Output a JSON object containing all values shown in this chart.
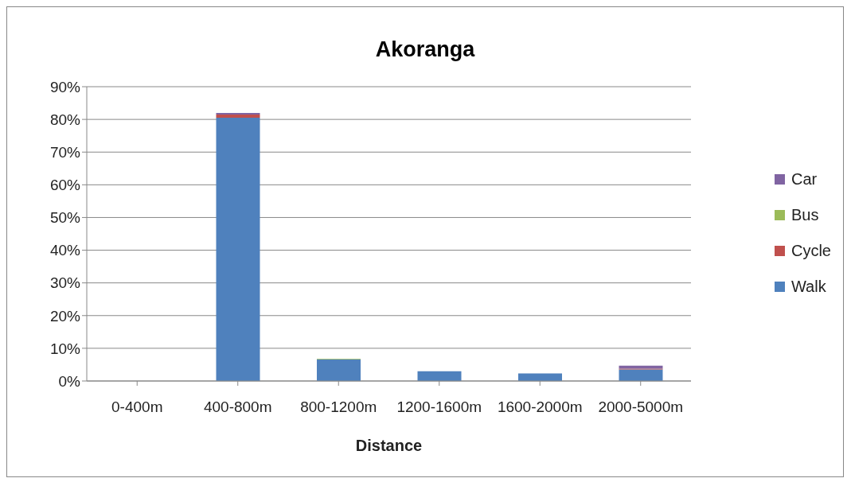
{
  "chart_data": {
    "type": "bar",
    "title": "Akoranga",
    "xlabel": "Distance",
    "categories": [
      "0-400m",
      "400-800m",
      "800-1200m",
      "1200-1600m",
      "1600-2000m",
      "2000-5000m"
    ],
    "stacked": true,
    "series": [
      {
        "name": "Walk",
        "color": "#4f81bd",
        "values": [
          0,
          80.5,
          6.6,
          3.0,
          2.3,
          3.5
        ]
      },
      {
        "name": "Cycle",
        "color": "#c0504d",
        "values": [
          0,
          1.0,
          0,
          0,
          0,
          0.3
        ]
      },
      {
        "name": "Bus",
        "color": "#9bbb59",
        "values": [
          0,
          0,
          0.2,
          0,
          0,
          0
        ]
      },
      {
        "name": "Car",
        "color": "#8064a2",
        "values": [
          0,
          0.5,
          0,
          0,
          0,
          0.9
        ]
      }
    ],
    "ylim": [
      0,
      90
    ],
    "yticks": [
      {
        "value": 0,
        "label": "0%"
      },
      {
        "value": 10,
        "label": "10%"
      },
      {
        "value": 20,
        "label": "20%"
      },
      {
        "value": 30,
        "label": "30%"
      },
      {
        "value": 40,
        "label": "40%"
      },
      {
        "value": 50,
        "label": "50%"
      },
      {
        "value": 60,
        "label": "60%"
      },
      {
        "value": 70,
        "label": "70%"
      },
      {
        "value": 80,
        "label": "80%"
      },
      {
        "value": 90,
        "label": "90%"
      }
    ],
    "grid": "y",
    "legend": "right"
  }
}
